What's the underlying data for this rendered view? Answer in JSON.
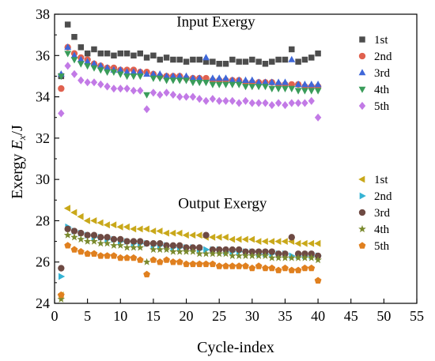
{
  "chart_data": {
    "type": "scatter",
    "xlabel": "Cycle-index",
    "ylabel_main": "Exergy ",
    "ylabel_italic": "E",
    "ylabel_sub": "x",
    "ylabel_tail": "/J",
    "xlim": [
      0,
      55
    ],
    "ylim": [
      24,
      38
    ],
    "xticks": [
      0,
      5,
      10,
      15,
      20,
      25,
      30,
      35,
      40,
      45,
      50,
      55
    ],
    "yticks": [
      24,
      26,
      28,
      30,
      32,
      34,
      36,
      38
    ],
    "grid": false,
    "annotations": [
      {
        "text": "Input Exergy",
        "x": 24.5,
        "y": 37.4
      },
      {
        "text": "Output Exergy",
        "x": 25.5,
        "y": 28.6
      }
    ],
    "legend_groups": [
      {
        "placement": "upper-right",
        "series": [
          0,
          1,
          2,
          3,
          4
        ]
      },
      {
        "placement": "lower-right",
        "series": [
          5,
          6,
          7,
          8,
          9
        ]
      }
    ],
    "series": [
      {
        "name": "1st",
        "group": "Input Exergy",
        "marker": "square",
        "color": "#4d4d4d",
        "x": [
          1,
          2,
          3,
          4,
          5,
          6,
          7,
          8,
          9,
          10,
          11,
          12,
          13,
          14,
          15,
          16,
          17,
          18,
          19,
          20,
          21,
          22,
          23,
          24,
          25,
          26,
          27,
          28,
          29,
          30,
          31,
          32,
          33,
          34,
          35,
          36,
          37,
          38,
          39,
          40
        ],
        "y": [
          35.0,
          37.5,
          36.9,
          36.4,
          36.1,
          36.3,
          36.1,
          36.1,
          36.0,
          36.1,
          36.1,
          36.0,
          36.1,
          35.9,
          36.0,
          35.8,
          35.9,
          35.8,
          35.8,
          35.7,
          35.8,
          35.8,
          35.7,
          35.7,
          35.6,
          35.6,
          35.8,
          35.7,
          35.7,
          35.8,
          35.7,
          35.6,
          35.7,
          35.8,
          35.8,
          36.3,
          35.7,
          35.8,
          35.9,
          36.1
        ]
      },
      {
        "name": "2nd",
        "group": "Input Exergy",
        "marker": "circle",
        "color": "#e0614f",
        "x": [
          1,
          2,
          3,
          4,
          5,
          6,
          7,
          8,
          9,
          10,
          11,
          12,
          13,
          14,
          15,
          16,
          17,
          18,
          19,
          20,
          21,
          22,
          23,
          24,
          25,
          26,
          27,
          28,
          29,
          30,
          31,
          32,
          33,
          34,
          35,
          36,
          37,
          38,
          39,
          40
        ],
        "y": [
          34.4,
          36.4,
          36.1,
          35.9,
          35.8,
          35.6,
          35.5,
          35.4,
          35.4,
          35.3,
          35.3,
          35.3,
          35.2,
          35.2,
          35.1,
          35.0,
          35.0,
          35.0,
          35.0,
          34.9,
          34.9,
          34.9,
          34.9,
          34.8,
          34.8,
          34.8,
          34.8,
          34.8,
          34.7,
          34.7,
          34.7,
          34.7,
          34.7,
          34.6,
          34.6,
          34.6,
          34.6,
          34.5,
          34.5,
          34.5
        ]
      },
      {
        "name": "3rd",
        "group": "Input Exergy",
        "marker": "triangle-up",
        "color": "#3f67d8",
        "x": [
          1,
          2,
          3,
          4,
          5,
          6,
          7,
          8,
          9,
          10,
          11,
          12,
          13,
          14,
          15,
          16,
          17,
          18,
          19,
          20,
          21,
          22,
          23,
          24,
          25,
          26,
          27,
          28,
          29,
          30,
          31,
          32,
          33,
          34,
          35,
          36,
          37,
          38,
          39,
          40
        ],
        "y": [
          35.1,
          36.4,
          36.0,
          35.8,
          35.7,
          35.6,
          35.5,
          35.4,
          35.3,
          35.3,
          35.2,
          35.2,
          35.2,
          35.1,
          35.1,
          35.1,
          35.0,
          35.0,
          35.0,
          35.0,
          34.9,
          34.9,
          35.9,
          34.9,
          34.9,
          34.9,
          34.8,
          34.8,
          34.8,
          34.8,
          34.7,
          34.7,
          34.7,
          34.7,
          34.7,
          35.8,
          34.6,
          34.6,
          34.6,
          34.6
        ]
      },
      {
        "name": "4th",
        "group": "Input Exergy",
        "marker": "triangle-down",
        "color": "#3a9c5a",
        "x": [
          1,
          2,
          3,
          4,
          5,
          6,
          7,
          8,
          9,
          10,
          11,
          12,
          13,
          14,
          15,
          16,
          17,
          18,
          19,
          20,
          21,
          22,
          23,
          24,
          25,
          26,
          27,
          28,
          29,
          30,
          31,
          32,
          33,
          34,
          35,
          36,
          37,
          38,
          39,
          40
        ],
        "y": [
          35.0,
          36.1,
          35.8,
          35.6,
          35.5,
          35.4,
          35.3,
          35.2,
          35.2,
          35.1,
          35.0,
          35.0,
          35.0,
          34.1,
          34.9,
          34.9,
          34.8,
          34.8,
          34.8,
          34.8,
          34.7,
          34.7,
          34.7,
          34.6,
          34.6,
          34.6,
          34.6,
          34.6,
          34.5,
          34.5,
          34.5,
          34.5,
          34.4,
          34.4,
          34.4,
          34.4,
          34.3,
          34.3,
          34.3,
          34.3
        ]
      },
      {
        "name": "5th",
        "group": "Input Exergy",
        "marker": "diamond",
        "color": "#c27ae6",
        "x": [
          1,
          2,
          3,
          4,
          5,
          6,
          7,
          8,
          9,
          10,
          11,
          12,
          13,
          14,
          15,
          16,
          17,
          18,
          19,
          20,
          21,
          22,
          23,
          24,
          25,
          26,
          27,
          28,
          29,
          30,
          31,
          32,
          33,
          34,
          35,
          36,
          37,
          38,
          39,
          40
        ],
        "y": [
          33.2,
          35.5,
          35.1,
          34.8,
          34.7,
          34.7,
          34.6,
          34.5,
          34.4,
          34.4,
          34.4,
          34.3,
          34.3,
          33.4,
          34.2,
          34.1,
          34.2,
          34.1,
          34.0,
          34.0,
          34.0,
          33.9,
          33.8,
          33.9,
          33.8,
          33.8,
          33.8,
          33.7,
          33.8,
          33.7,
          33.7,
          33.7,
          33.6,
          33.7,
          33.6,
          33.7,
          33.7,
          33.7,
          33.8,
          33.0
        ]
      },
      {
        "name": "1st",
        "group": "Output Exergy",
        "marker": "triangle-left",
        "color": "#c9a81a",
        "x": [
          1,
          2,
          3,
          4,
          5,
          6,
          7,
          8,
          9,
          10,
          11,
          12,
          13,
          14,
          15,
          16,
          17,
          18,
          19,
          20,
          21,
          22,
          23,
          24,
          25,
          26,
          27,
          28,
          29,
          30,
          31,
          32,
          33,
          34,
          35,
          36,
          37,
          38,
          39,
          40
        ],
        "y": [
          24.4,
          28.6,
          28.4,
          28.2,
          28.0,
          28.0,
          27.9,
          27.8,
          27.8,
          27.7,
          27.7,
          27.6,
          27.6,
          27.6,
          27.5,
          27.5,
          27.4,
          27.4,
          27.4,
          27.3,
          27.3,
          27.3,
          27.2,
          27.2,
          27.2,
          27.2,
          27.1,
          27.1,
          27.1,
          27.1,
          27.0,
          27.0,
          27.0,
          27.0,
          27.0,
          27.0,
          26.9,
          26.9,
          26.9,
          26.9
        ]
      },
      {
        "name": "2nd",
        "group": "Output Exergy",
        "marker": "triangle-right",
        "color": "#35b3d4",
        "x": [
          1,
          2,
          3,
          4,
          5,
          6,
          7,
          8,
          9,
          10,
          11,
          12,
          13,
          14,
          15,
          16,
          17,
          18,
          19,
          20,
          21,
          22,
          23,
          24,
          25,
          26,
          27,
          28,
          29,
          30,
          31,
          32,
          33,
          34,
          35,
          36,
          37,
          38,
          39,
          40
        ],
        "y": [
          25.3,
          27.7,
          27.5,
          27.4,
          27.3,
          27.2,
          27.2,
          27.1,
          27.1,
          27.0,
          27.0,
          26.9,
          26.9,
          26.9,
          26.8,
          26.8,
          26.8,
          26.7,
          26.7,
          26.7,
          26.7,
          26.6,
          26.6,
          26.6,
          26.6,
          26.5,
          26.5,
          26.5,
          26.5,
          26.5,
          26.4,
          26.4,
          26.4,
          26.4,
          26.4,
          26.3,
          26.3,
          26.3,
          26.3,
          26.3
        ]
      },
      {
        "name": "3rd",
        "group": "Output Exergy",
        "marker": "circle",
        "color": "#6e4a43",
        "x": [
          1,
          2,
          3,
          4,
          5,
          6,
          7,
          8,
          9,
          10,
          11,
          12,
          13,
          14,
          15,
          16,
          17,
          18,
          19,
          20,
          21,
          22,
          23,
          24,
          25,
          26,
          27,
          28,
          29,
          30,
          31,
          32,
          33,
          34,
          35,
          36,
          37,
          38,
          39,
          40
        ],
        "y": [
          25.7,
          27.6,
          27.5,
          27.4,
          27.3,
          27.3,
          27.2,
          27.2,
          27.1,
          27.1,
          27.0,
          27.0,
          27.0,
          26.9,
          26.9,
          26.9,
          26.8,
          26.8,
          26.8,
          26.7,
          26.7,
          26.7,
          27.3,
          26.6,
          26.6,
          26.6,
          26.6,
          26.6,
          26.5,
          26.5,
          26.5,
          26.5,
          26.5,
          26.4,
          26.4,
          27.2,
          26.4,
          26.4,
          26.4,
          26.3
        ]
      },
      {
        "name": "4th",
        "group": "Output Exergy",
        "marker": "star",
        "color": "#7a8a2e",
        "x": [
          1,
          2,
          3,
          4,
          5,
          6,
          7,
          8,
          9,
          10,
          11,
          12,
          13,
          14,
          15,
          16,
          17,
          18,
          19,
          20,
          21,
          22,
          23,
          24,
          25,
          26,
          27,
          28,
          29,
          30,
          31,
          32,
          33,
          34,
          35,
          36,
          37,
          38,
          39,
          40
        ],
        "y": [
          24.2,
          27.3,
          27.2,
          27.1,
          27.0,
          27.0,
          26.9,
          26.9,
          26.8,
          26.8,
          26.7,
          26.7,
          26.7,
          26.0,
          26.6,
          26.6,
          26.6,
          26.5,
          26.5,
          26.5,
          26.5,
          26.4,
          26.4,
          26.4,
          26.4,
          26.4,
          26.3,
          26.3,
          26.3,
          26.3,
          26.3,
          26.3,
          26.2,
          26.2,
          26.2,
          26.2,
          26.2,
          26.2,
          26.2,
          26.1
        ]
      },
      {
        "name": "5th",
        "group": "Output Exergy",
        "marker": "pentagon",
        "color": "#e0801f",
        "x": [
          1,
          2,
          3,
          4,
          5,
          6,
          7,
          8,
          9,
          10,
          11,
          12,
          13,
          14,
          15,
          16,
          17,
          18,
          19,
          20,
          21,
          22,
          23,
          24,
          25,
          26,
          27,
          28,
          29,
          30,
          31,
          32,
          33,
          34,
          35,
          36,
          37,
          38,
          39,
          40
        ],
        "y": [
          24.4,
          26.8,
          26.6,
          26.5,
          26.4,
          26.4,
          26.3,
          26.3,
          26.3,
          26.2,
          26.2,
          26.2,
          26.1,
          25.4,
          26.1,
          26.0,
          26.1,
          26.0,
          26.0,
          25.9,
          25.9,
          25.9,
          25.9,
          25.9,
          25.8,
          25.8,
          25.8,
          25.8,
          25.8,
          25.7,
          25.8,
          25.7,
          25.7,
          25.6,
          25.7,
          25.6,
          25.6,
          25.7,
          25.7,
          25.1
        ]
      }
    ]
  }
}
